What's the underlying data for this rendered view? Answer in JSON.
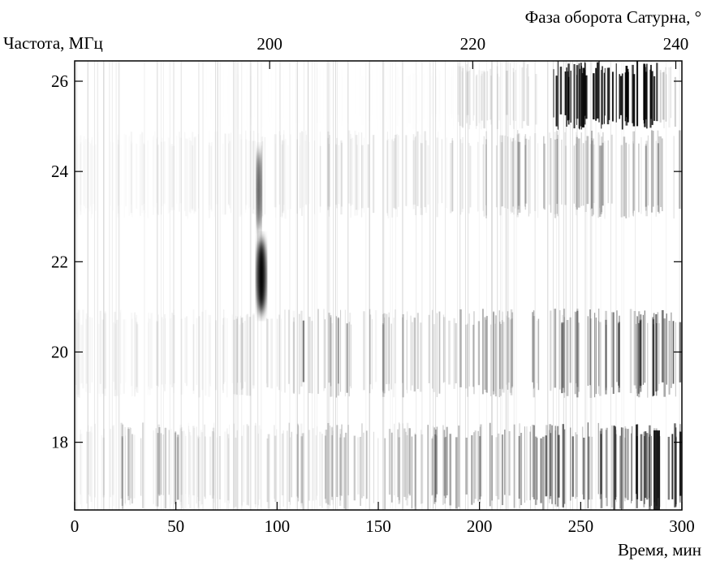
{
  "chart_data": {
    "type": "spectrogram",
    "title": "Фаза оборота Сатурна, °",
    "y_label": "Частота, МГц",
    "x_label": "Время, мин",
    "xlim": [
      0,
      300
    ],
    "xticks": [
      0,
      50,
      100,
      150,
      200,
      250,
      300
    ],
    "x2lim": [
      180.8,
      240.6
    ],
    "x2ticks": [
      200,
      220,
      240
    ],
    "ylim": [
      16.5,
      26.45
    ],
    "yticks": [
      18,
      20,
      22,
      24,
      26
    ]
  }
}
